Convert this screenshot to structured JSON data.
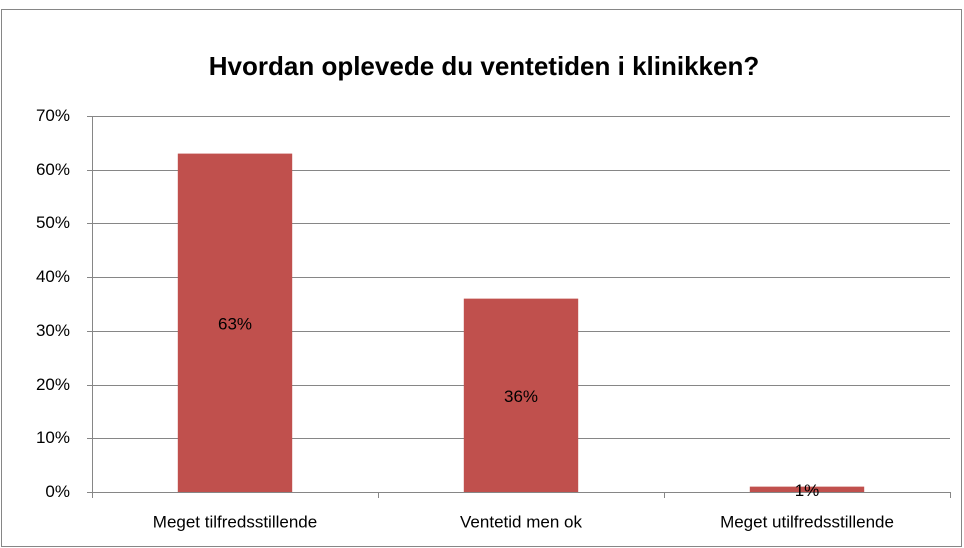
{
  "chart_data": {
    "type": "bar",
    "title": "Hvordan oplevede du ventetiden i klinikken?",
    "categories": [
      "Meget tilfredsstillende",
      "Ventetid men ok",
      "Meget utilfredsstillende"
    ],
    "values": [
      63,
      36,
      1
    ],
    "value_labels": [
      "63%",
      "36%",
      "1%"
    ],
    "color": "#c0504d",
    "ylim": [
      0,
      70
    ],
    "yticks": [
      {
        "value": 0,
        "label": "0%"
      },
      {
        "value": 10,
        "label": "10%"
      },
      {
        "value": 20,
        "label": "20%"
      },
      {
        "value": 30,
        "label": "30%"
      },
      {
        "value": 40,
        "label": "40%"
      },
      {
        "value": 50,
        "label": "50%"
      },
      {
        "value": 60,
        "label": "60%"
      },
      {
        "value": 70,
        "label": "70%"
      }
    ],
    "grid": true
  }
}
